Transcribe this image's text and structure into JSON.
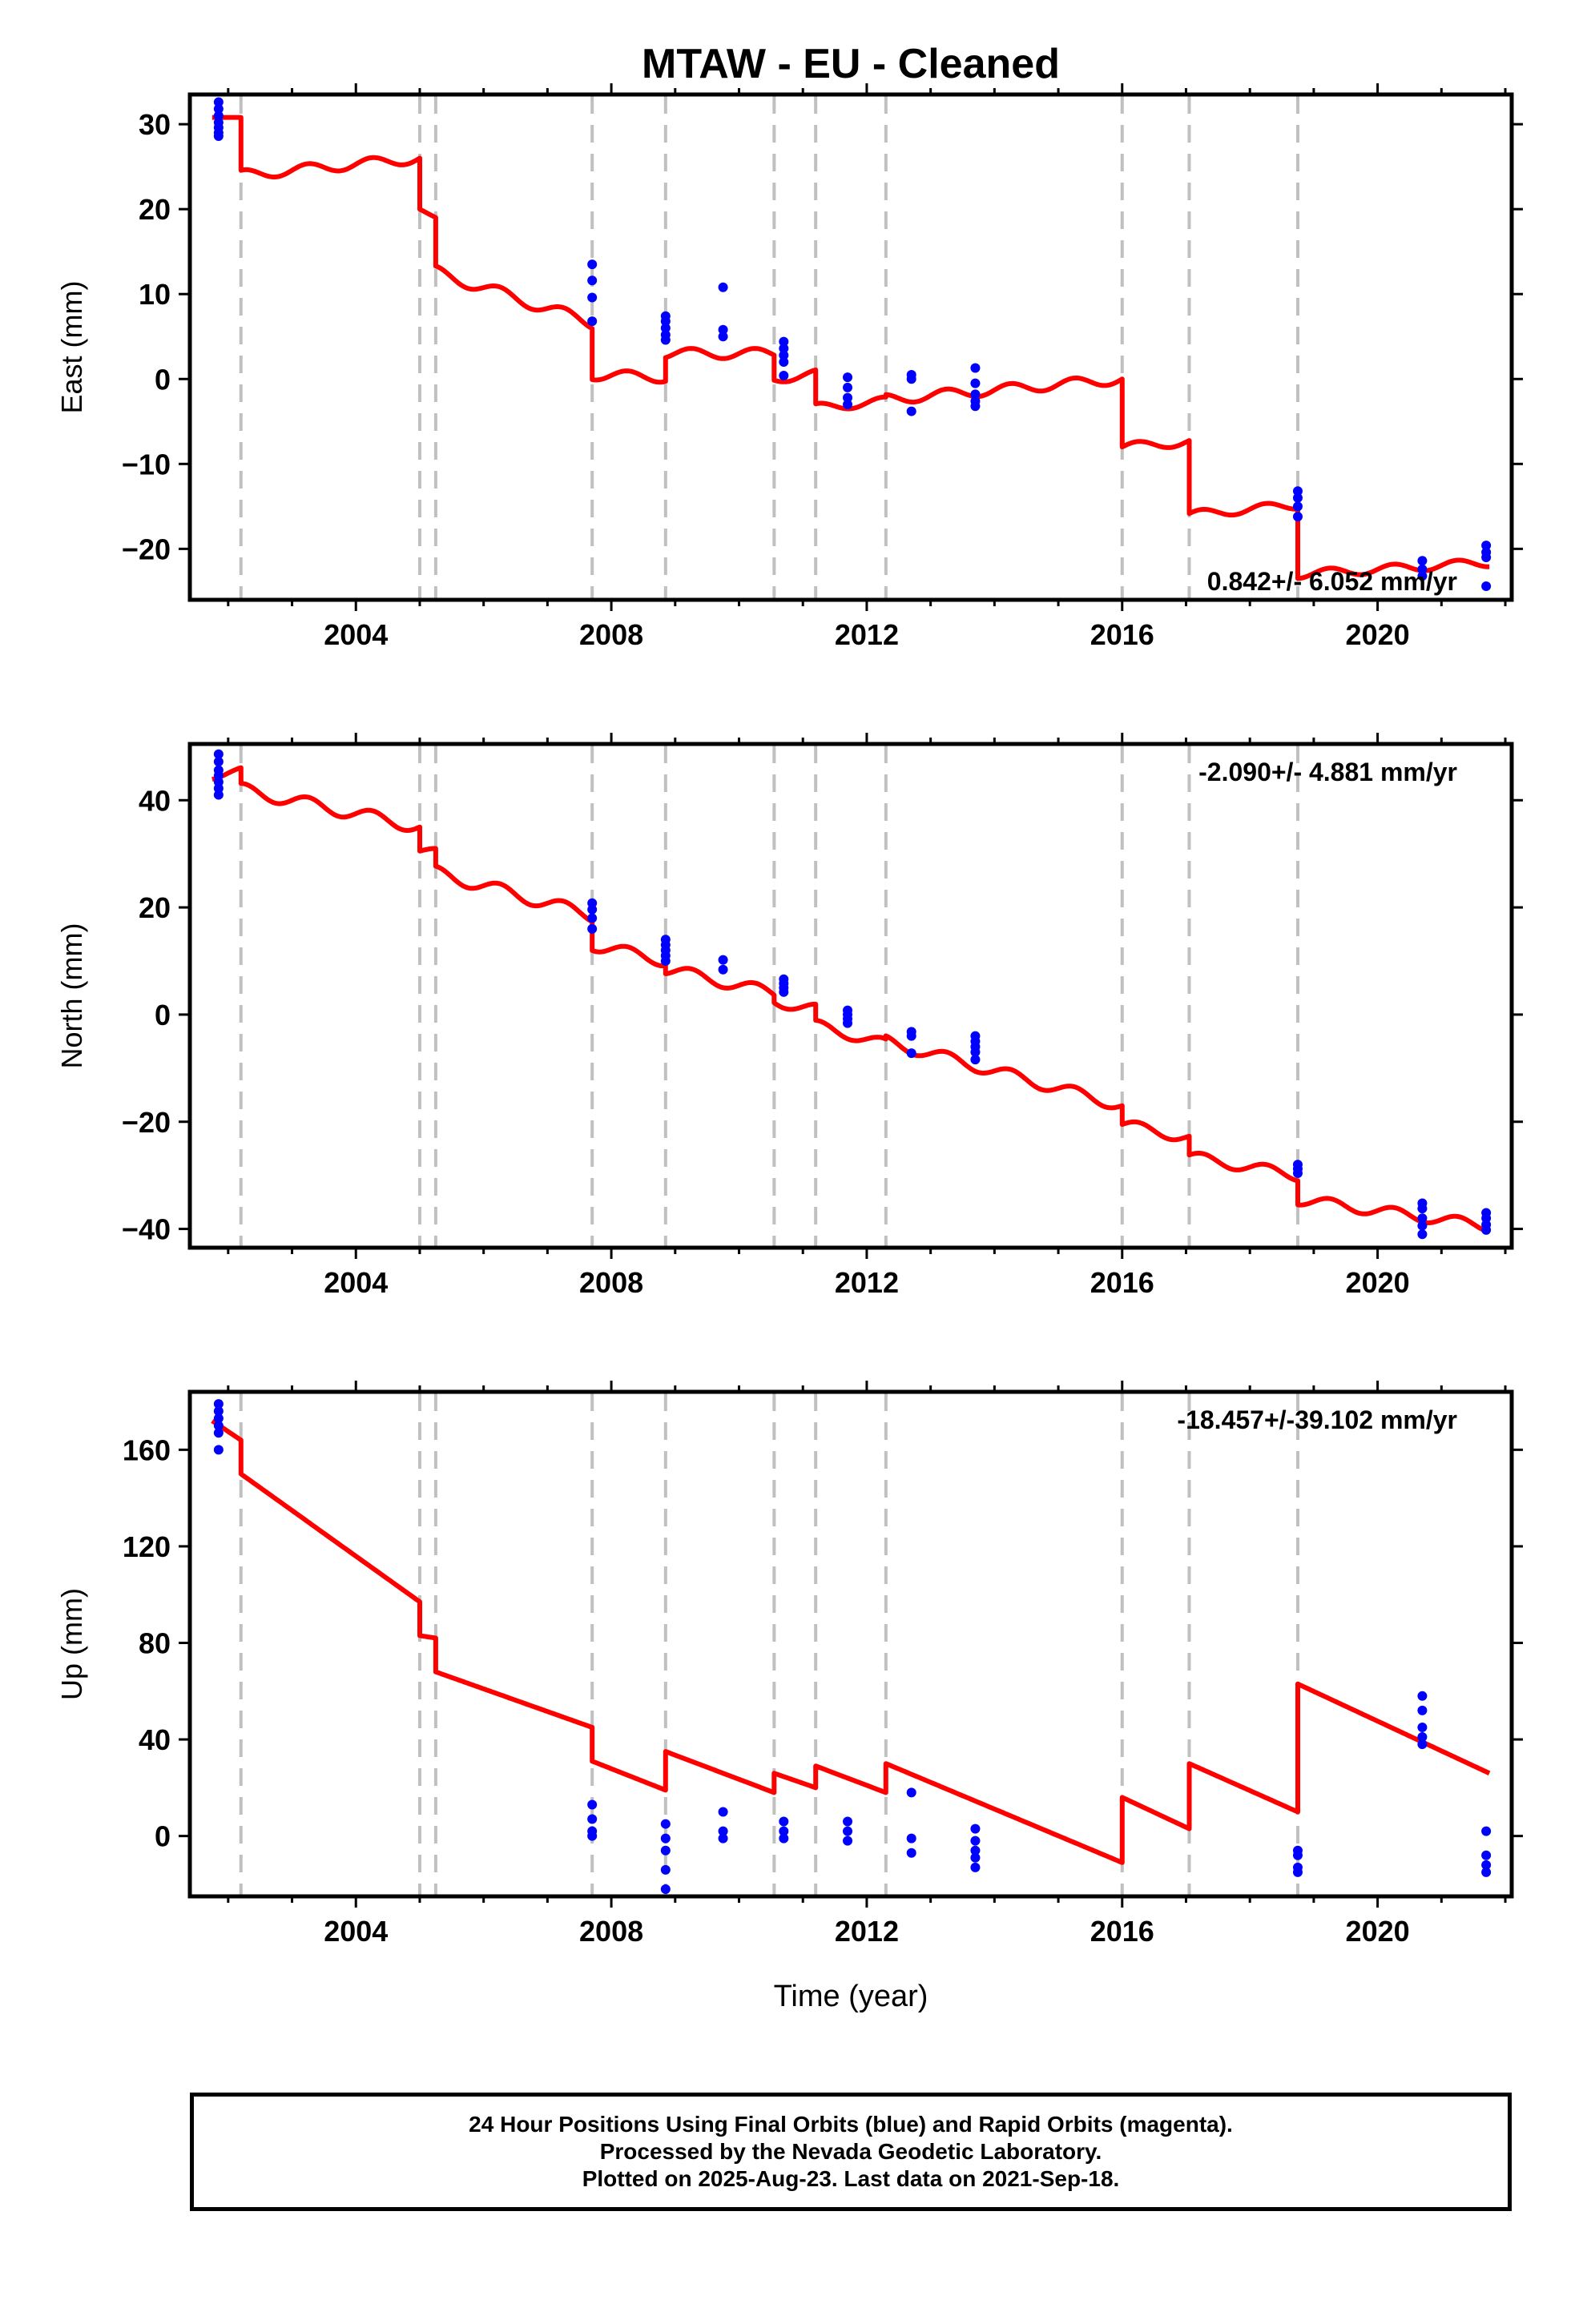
{
  "title": "MTAW  - EU - Cleaned",
  "xlabel": "Time (year)",
  "footer": [
    "24 Hour Positions Using Final Orbits (blue) and Rapid Orbits (magenta).",
    "Processed by the Nevada Geodetic Laboratory.",
    "Plotted on 2025-Aug-23. Last data on 2021-Sep-18."
  ],
  "colors": {
    "model": "#ff0000",
    "observations": "#0000ff",
    "steps": "#c0c0c0",
    "frame": "#000000"
  },
  "chart_data": [
    {
      "type": "scatter",
      "name": "east",
      "ylabel": "East (mm)",
      "rate_label": "0.842+/- 6.052 mm/yr",
      "xlim": [
        2001.4,
        2022.1
      ],
      "ylim": [
        -26,
        33.5
      ],
      "xticks": [
        2004,
        2008,
        2012,
        2016,
        2020
      ],
      "yticks": [
        -20,
        -10,
        0,
        10,
        20,
        30
      ],
      "ytick_labels": [
        "−20",
        "−10",
        "0",
        "10",
        "20",
        "30"
      ],
      "steps": [
        2002.2,
        2005.0,
        2005.25,
        2007.7,
        2008.85,
        2010.55,
        2011.2,
        2012.3,
        2016.0,
        2017.05,
        2018.75
      ],
      "observations": [
        [
          2001.85,
          32.6
        ],
        [
          2001.85,
          31.8
        ],
        [
          2001.85,
          31.0
        ],
        [
          2001.85,
          30.2
        ],
        [
          2001.85,
          29.6
        ],
        [
          2001.85,
          29.0
        ],
        [
          2001.85,
          28.6
        ],
        [
          2007.7,
          13.5
        ],
        [
          2007.7,
          11.6
        ],
        [
          2007.7,
          9.6
        ],
        [
          2007.7,
          6.8
        ],
        [
          2008.85,
          7.4
        ],
        [
          2008.85,
          6.8
        ],
        [
          2008.85,
          6.0
        ],
        [
          2008.85,
          5.2
        ],
        [
          2008.85,
          4.6
        ],
        [
          2009.75,
          10.8
        ],
        [
          2009.75,
          5.8
        ],
        [
          2009.75,
          5.0
        ],
        [
          2010.7,
          4.4
        ],
        [
          2010.7,
          3.6
        ],
        [
          2010.7,
          2.8
        ],
        [
          2010.7,
          2.0
        ],
        [
          2010.7,
          0.4
        ],
        [
          2011.7,
          0.2
        ],
        [
          2011.7,
          -1.0
        ],
        [
          2011.7,
          -2.2
        ],
        [
          2011.7,
          -3.0
        ],
        [
          2012.7,
          0.5
        ],
        [
          2012.7,
          0.0
        ],
        [
          2012.7,
          -3.8
        ],
        [
          2013.7,
          1.3
        ],
        [
          2013.7,
          -0.5
        ],
        [
          2013.7,
          -1.8
        ],
        [
          2013.7,
          -2.6
        ],
        [
          2013.7,
          -3.2
        ],
        [
          2018.75,
          -13.2
        ],
        [
          2018.75,
          -14.0
        ],
        [
          2018.75,
          -15.0
        ],
        [
          2018.75,
          -16.2
        ],
        [
          2020.7,
          -21.4
        ],
        [
          2020.7,
          -22.4
        ],
        [
          2020.7,
          -23.2
        ],
        [
          2021.7,
          -19.6
        ],
        [
          2021.7,
          -20.4
        ],
        [
          2021.7,
          -21.0
        ],
        [
          2021.7,
          -24.4
        ]
      ],
      "model_segments": [
        {
          "x0": 2001.75,
          "x1": 2002.2,
          "y0": 30.8,
          "y1": 30.8,
          "amp": 0
        },
        {
          "x0": 2002.2,
          "x1": 2005.0,
          "y0": 24.0,
          "y1": 26.0,
          "amp": 0.6
        },
        {
          "x0": 2005.0,
          "x1": 2005.25,
          "y0": 20.0,
          "y1": 19.0,
          "amp": 0
        },
        {
          "x0": 2005.25,
          "x1": 2007.7,
          "y0": 12.6,
          "y1": 6.6,
          "amp": 0.7
        },
        {
          "x0": 2007.7,
          "x1": 2008.85,
          "y0": 0.5,
          "y1": 0.2,
          "amp": 0.6
        },
        {
          "x0": 2008.85,
          "x1": 2010.55,
          "y0": 3.0,
          "y1": 3.0,
          "amp": 0.6
        },
        {
          "x0": 2010.55,
          "x1": 2011.2,
          "y0": 0.0,
          "y1": 0.6,
          "amp": 0.5
        },
        {
          "x0": 2011.2,
          "x1": 2012.3,
          "y0": -3.4,
          "y1": -2.6,
          "amp": 0.5
        },
        {
          "x0": 2012.3,
          "x1": 2016.0,
          "y0": -2.4,
          "y1": 0.0,
          "amp": 0.6
        },
        {
          "x0": 2016.0,
          "x1": 2017.05,
          "y0": -8.0,
          "y1": -7.4,
          "amp": 0.5
        },
        {
          "x0": 2017.05,
          "x1": 2018.75,
          "y0": -16.0,
          "y1": -14.8,
          "amp": 0.5
        },
        {
          "x0": 2018.75,
          "x1": 2021.75,
          "y0": -23.0,
          "y1": -21.6,
          "amp": 0.5
        }
      ]
    },
    {
      "type": "scatter",
      "name": "north",
      "ylabel": "North (mm)",
      "rate_label": "-2.090+/- 4.881 mm/yr",
      "xlim": [
        2001.4,
        2022.1
      ],
      "ylim": [
        -43.5,
        50.5
      ],
      "xticks": [
        2004,
        2008,
        2012,
        2016,
        2020
      ],
      "yticks": [
        -40,
        -20,
        0,
        20,
        40
      ],
      "ytick_labels": [
        "−40",
        "−20",
        "0",
        "20",
        "40"
      ],
      "steps": [
        2002.2,
        2005.0,
        2005.25,
        2007.7,
        2008.85,
        2010.55,
        2011.2,
        2012.3,
        2016.0,
        2017.05,
        2018.75
      ],
      "observations": [
        [
          2001.85,
          48.6
        ],
        [
          2001.85,
          47.2
        ],
        [
          2001.85,
          45.6
        ],
        [
          2001.85,
          44.6
        ],
        [
          2001.85,
          43.4
        ],
        [
          2001.85,
          42.2
        ],
        [
          2001.85,
          41.0
        ],
        [
          2007.7,
          20.8
        ],
        [
          2007.7,
          19.6
        ],
        [
          2007.7,
          18.0
        ],
        [
          2007.7,
          16.0
        ],
        [
          2008.85,
          14.0
        ],
        [
          2008.85,
          13.0
        ],
        [
          2008.85,
          12.0
        ],
        [
          2008.85,
          11.0
        ],
        [
          2008.85,
          10.0
        ],
        [
          2009.75,
          10.2
        ],
        [
          2009.75,
          8.4
        ],
        [
          2010.7,
          6.6
        ],
        [
          2010.7,
          5.8
        ],
        [
          2010.7,
          5.0
        ],
        [
          2010.7,
          4.2
        ],
        [
          2011.7,
          0.8
        ],
        [
          2011.7,
          0.0
        ],
        [
          2011.7,
          -0.8
        ],
        [
          2011.7,
          -1.6
        ],
        [
          2012.7,
          -3.2
        ],
        [
          2012.7,
          -4.0
        ],
        [
          2012.7,
          -7.2
        ],
        [
          2013.7,
          -4.0
        ],
        [
          2013.7,
          -5.0
        ],
        [
          2013.7,
          -6.0
        ],
        [
          2013.7,
          -7.0
        ],
        [
          2013.7,
          -8.4
        ],
        [
          2018.75,
          -28.0
        ],
        [
          2018.75,
          -28.8
        ],
        [
          2018.75,
          -29.6
        ],
        [
          2020.7,
          -35.2
        ],
        [
          2020.7,
          -36.2
        ],
        [
          2020.7,
          -38.0
        ],
        [
          2020.7,
          -39.4
        ],
        [
          2020.7,
          -41.0
        ],
        [
          2021.7,
          -37.0
        ],
        [
          2021.7,
          -38.0
        ],
        [
          2021.7,
          -39.2
        ],
        [
          2021.7,
          -40.2
        ]
      ],
      "model_segments": [
        {
          "x0": 2001.75,
          "x1": 2002.2,
          "y0": 44.5,
          "y1": 45.5,
          "amp": 0.6
        },
        {
          "x0": 2002.2,
          "x1": 2005.0,
          "y0": 42.0,
          "y1": 35.0,
          "amp": 1.2
        },
        {
          "x0": 2005.0,
          "x1": 2005.25,
          "y0": 30.5,
          "y1": 30.5,
          "amp": 0.5
        },
        {
          "x0": 2005.25,
          "x1": 2007.7,
          "y0": 26.5,
          "y1": 18.5,
          "amp": 1.2
        },
        {
          "x0": 2007.7,
          "x1": 2008.85,
          "y0": 13.0,
          "y1": 10.0,
          "amp": 1.1
        },
        {
          "x0": 2008.85,
          "x1": 2010.55,
          "y0": 8.5,
          "y1": 4.0,
          "amp": 1.1
        },
        {
          "x0": 2010.55,
          "x1": 2011.2,
          "y0": 2.5,
          "y1": 1.0,
          "amp": 1.0
        },
        {
          "x0": 2011.2,
          "x1": 2012.3,
          "y0": -2.0,
          "y1": -5.5,
          "amp": 1.0
        },
        {
          "x0": 2012.3,
          "x1": 2016.0,
          "y0": -5.0,
          "y1": -17.0,
          "amp": 1.1
        },
        {
          "x0": 2016.0,
          "x1": 2017.05,
          "y0": -20.5,
          "y1": -23.0,
          "amp": 1.0
        },
        {
          "x0": 2017.05,
          "x1": 2018.75,
          "y0": -26.5,
          "y1": -30.0,
          "amp": 1.0
        },
        {
          "x0": 2018.75,
          "x1": 2021.75,
          "y0": -34.5,
          "y1": -39.5,
          "amp": 1.0
        }
      ]
    },
    {
      "type": "scatter",
      "name": "up",
      "ylabel": "Up (mm)",
      "rate_label": "-18.457+/-39.102 mm/yr",
      "xlim": [
        2001.4,
        2022.1
      ],
      "ylim": [
        -25,
        184
      ],
      "xticks": [
        2004,
        2008,
        2012,
        2016,
        2020
      ],
      "yticks": [
        0,
        40,
        80,
        120,
        160
      ],
      "ytick_labels": [
        "0",
        "40",
        "80",
        "120",
        "160"
      ],
      "steps": [
        2002.2,
        2005.0,
        2005.25,
        2007.7,
        2008.85,
        2010.55,
        2011.2,
        2012.3,
        2016.0,
        2017.05,
        2018.75
      ],
      "observations": [
        [
          2001.85,
          179
        ],
        [
          2001.85,
          176
        ],
        [
          2001.85,
          173
        ],
        [
          2001.85,
          170
        ],
        [
          2001.85,
          167
        ],
        [
          2001.85,
          160
        ],
        [
          2007.7,
          13
        ],
        [
          2007.7,
          7
        ],
        [
          2007.7,
          2
        ],
        [
          2007.7,
          0
        ],
        [
          2008.85,
          5
        ],
        [
          2008.85,
          -1
        ],
        [
          2008.85,
          -6
        ],
        [
          2008.85,
          -14
        ],
        [
          2008.85,
          -22
        ],
        [
          2009.75,
          10
        ],
        [
          2009.75,
          2
        ],
        [
          2009.75,
          -1
        ],
        [
          2010.7,
          6
        ],
        [
          2010.7,
          2
        ],
        [
          2010.7,
          -1
        ],
        [
          2011.7,
          6
        ],
        [
          2011.7,
          2
        ],
        [
          2011.7,
          -2
        ],
        [
          2012.7,
          18
        ],
        [
          2012.7,
          -1
        ],
        [
          2012.7,
          -7
        ],
        [
          2013.7,
          3
        ],
        [
          2013.7,
          -2
        ],
        [
          2013.7,
          -6
        ],
        [
          2013.7,
          -9
        ],
        [
          2013.7,
          -13
        ],
        [
          2018.75,
          -6
        ],
        [
          2018.75,
          -8
        ],
        [
          2018.75,
          -13
        ],
        [
          2018.75,
          -15
        ],
        [
          2020.7,
          58
        ],
        [
          2020.7,
          52
        ],
        [
          2020.7,
          45
        ],
        [
          2020.7,
          41
        ],
        [
          2020.7,
          38
        ],
        [
          2021.7,
          2
        ],
        [
          2021.7,
          -8
        ],
        [
          2021.7,
          -12
        ],
        [
          2021.7,
          -15
        ]
      ],
      "model_segments": [
        {
          "x0": 2001.75,
          "x1": 2002.2,
          "y0": 172,
          "y1": 164,
          "amp": 0
        },
        {
          "x0": 2002.2,
          "x1": 2005.0,
          "y0": 150,
          "y1": 97,
          "amp": 0
        },
        {
          "x0": 2005.0,
          "x1": 2005.25,
          "y0": 83,
          "y1": 82,
          "amp": 0
        },
        {
          "x0": 2005.25,
          "x1": 2007.7,
          "y0": 68,
          "y1": 45,
          "amp": 0
        },
        {
          "x0": 2007.7,
          "x1": 2008.85,
          "y0": 31,
          "y1": 19,
          "amp": 0
        },
        {
          "x0": 2008.85,
          "x1": 2010.55,
          "y0": 35,
          "y1": 18,
          "amp": 0
        },
        {
          "x0": 2010.55,
          "x1": 2011.2,
          "y0": 26,
          "y1": 20,
          "amp": 0
        },
        {
          "x0": 2011.2,
          "x1": 2012.3,
          "y0": 29,
          "y1": 18,
          "amp": 0
        },
        {
          "x0": 2012.3,
          "x1": 2016.0,
          "y0": 30,
          "y1": -11,
          "amp": 0
        },
        {
          "x0": 2016.0,
          "x1": 2017.05,
          "y0": 16,
          "y1": 3,
          "amp": 0
        },
        {
          "x0": 2017.05,
          "x1": 2018.75,
          "y0": 30,
          "y1": 10,
          "amp": 0
        },
        {
          "x0": 2018.75,
          "x1": 2021.75,
          "y0": 63,
          "y1": 26,
          "amp": 0
        }
      ]
    }
  ]
}
